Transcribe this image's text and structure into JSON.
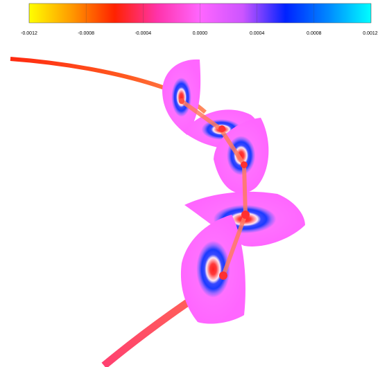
{
  "colorbar": {
    "lim": [
      -0.0012,
      0.0012
    ],
    "colors": [
      "#ffff00",
      "#ff9900",
      "#ff2200",
      "#ff33aa",
      "#ff66ff",
      "#cc55ff",
      "#0022ff",
      "#0088ff",
      "#00ffff"
    ],
    "ticks": [
      -0.0012,
      -0.0008,
      -0.0004,
      {
        "value": 0,
        "label": "0.0000"
      },
      0.0004,
      0.0008,
      0.0012
    ]
  }
}
